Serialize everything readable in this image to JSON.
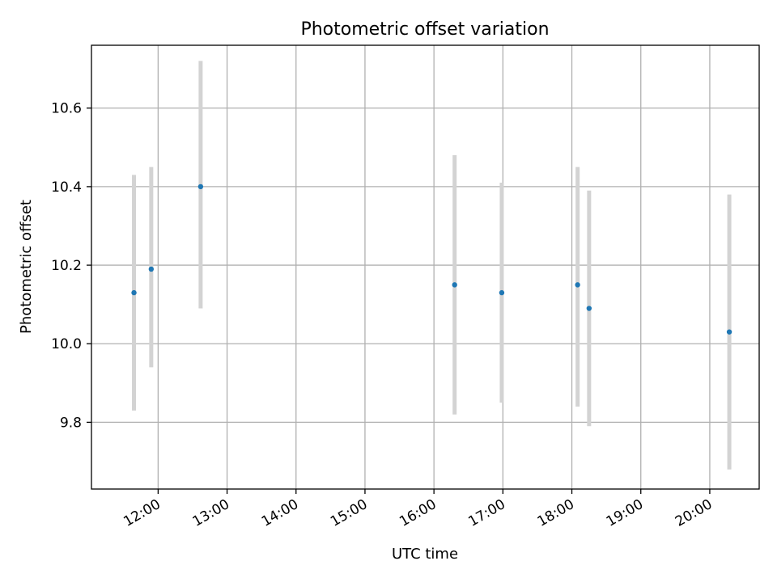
{
  "chart_data": {
    "type": "scatter",
    "title": "Photometric offset variation",
    "xlabel": "UTC time",
    "ylabel": "Photometric offset",
    "xlim": [
      "11:02",
      "20:43"
    ],
    "ylim": [
      9.63,
      10.76
    ],
    "x_ticks": [
      "12:00",
      "13:00",
      "14:00",
      "15:00",
      "16:00",
      "17:00",
      "18:00",
      "19:00",
      "20:00"
    ],
    "y_ticks": [
      "9.8",
      "10.0",
      "10.2",
      "10.4",
      "10.6"
    ],
    "grid": true,
    "points": [
      {
        "time": "11:39",
        "value": 10.13,
        "err_low": 9.83,
        "err_high": 10.43
      },
      {
        "time": "11:54",
        "value": 10.19,
        "err_low": 9.94,
        "err_high": 10.45
      },
      {
        "time": "12:37",
        "value": 10.4,
        "err_low": 10.09,
        "err_high": 10.72
      },
      {
        "time": "16:18",
        "value": 10.15,
        "err_low": 9.82,
        "err_high": 10.48
      },
      {
        "time": "16:59",
        "value": 10.13,
        "err_low": 9.85,
        "err_high": 10.41
      },
      {
        "time": "18:05",
        "value": 10.15,
        "err_low": 9.84,
        "err_high": 10.45
      },
      {
        "time": "18:15",
        "value": 10.09,
        "err_low": 9.79,
        "err_high": 10.39
      },
      {
        "time": "20:17",
        "value": 10.03,
        "err_low": 9.68,
        "err_high": 10.38
      }
    ],
    "colors": {
      "point": "#1f77b4",
      "errorbar": "#d3d3d3",
      "grid": "#b0b0b0"
    }
  }
}
